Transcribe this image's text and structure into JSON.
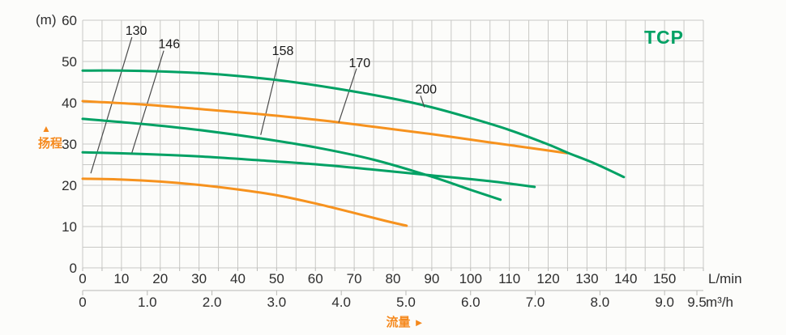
{
  "title": "TCP",
  "colors": {
    "green": "#00a164",
    "orange": "#f6921e",
    "grid": "#c8c8c5",
    "axis": "#b9b9b6",
    "tick_text": "#2e2e2e",
    "label_text": "#1a1a1a",
    "leader": "#4a4a4a",
    "accent_orange": "#f5891d",
    "background": "#fcfcfa"
  },
  "chart_data": {
    "type": "line",
    "title": "TCP",
    "grid": "on",
    "y_axis": {
      "label": "扬程",
      "direction_arrow": "▲",
      "unit": "(m)",
      "range": [
        0,
        60
      ],
      "ticks": [
        0,
        10,
        20,
        30,
        40,
        50,
        60
      ],
      "grid_step": 5
    },
    "x_axis": {
      "label": "流量",
      "direction_arrow": "►",
      "unit_primary": "L/min",
      "range_primary": [
        0,
        160
      ],
      "ticks_primary": [
        0,
        10,
        20,
        30,
        40,
        50,
        60,
        70,
        80,
        90,
        100,
        110,
        120,
        130,
        140,
        150
      ],
      "grid_step_primary": 5,
      "unit_secondary": "m³/h",
      "lmin_per_secondary_unit": 16.667,
      "ticks_secondary": [
        {
          "v": 0,
          "label": "0"
        },
        {
          "v": 1,
          "label": "1.0"
        },
        {
          "v": 2,
          "label": "2.0"
        },
        {
          "v": 3,
          "label": "3.0"
        },
        {
          "v": 4,
          "label": "4.0"
        },
        {
          "v": 5,
          "label": "5.0"
        },
        {
          "v": 6,
          "label": "6.0"
        },
        {
          "v": 7,
          "label": "7.0"
        },
        {
          "v": 8,
          "label": "8.0"
        },
        {
          "v": 9,
          "label": "9.0"
        },
        {
          "v": 9.5,
          "label": "9.5"
        }
      ]
    },
    "series": [
      {
        "name": "130",
        "color": "orange",
        "points": [
          [
            0,
            21.6
          ],
          [
            10,
            21.4
          ],
          [
            20,
            20.9
          ],
          [
            30,
            20.1
          ],
          [
            40,
            19.0
          ],
          [
            50,
            17.6
          ],
          [
            60,
            15.6
          ],
          [
            70,
            13.3
          ],
          [
            78,
            11.4
          ],
          [
            83.5,
            10.2
          ]
        ],
        "label": {
          "x": 13.8,
          "y": 57.6
        },
        "leader": [
          [
            12.7,
            55.9
          ],
          [
            2.1,
            22.9
          ]
        ]
      },
      {
        "name": "146",
        "color": "green",
        "points": [
          [
            0,
            28.0
          ],
          [
            15,
            27.6
          ],
          [
            30,
            27.0
          ],
          [
            45,
            26.1
          ],
          [
            60,
            25.1
          ],
          [
            75,
            23.8
          ],
          [
            90,
            22.4
          ],
          [
            105,
            21.0
          ],
          [
            116.5,
            19.6
          ]
        ],
        "label": {
          "x": 22.3,
          "y": 54.4
        },
        "leader": [
          [
            20.9,
            52.6
          ],
          [
            12.7,
            27.9
          ]
        ]
      },
      {
        "name": "158",
        "color": "green",
        "points": [
          [
            0,
            36.1
          ],
          [
            15,
            34.9
          ],
          [
            30,
            33.4
          ],
          [
            45,
            31.5
          ],
          [
            60,
            29.2
          ],
          [
            75,
            26.2
          ],
          [
            90,
            22.1
          ],
          [
            100,
            18.9
          ],
          [
            107.7,
            16.5
          ]
        ],
        "label": {
          "x": 51.6,
          "y": 52.7
        },
        "leader": [
          [
            50.7,
            50.9
          ],
          [
            45.9,
            32.2
          ]
        ]
      },
      {
        "name": "170",
        "color": "orange",
        "points": [
          [
            0,
            40.4
          ],
          [
            15,
            39.6
          ],
          [
            30,
            38.5
          ],
          [
            45,
            37.3
          ],
          [
            60,
            35.9
          ],
          [
            75,
            34.2
          ],
          [
            90,
            32.4
          ],
          [
            105,
            30.4
          ],
          [
            115,
            29.1
          ],
          [
            124.8,
            27.8
          ]
        ],
        "label": {
          "x": 71.4,
          "y": 49.8
        },
        "leader": [
          [
            70.6,
            48.3
          ],
          [
            66.0,
            35.2
          ]
        ]
      },
      {
        "name": "200",
        "color": "green",
        "points": [
          [
            0,
            47.8
          ],
          [
            10,
            47.8
          ],
          [
            20,
            47.6
          ],
          [
            30,
            47.2
          ],
          [
            40,
            46.5
          ],
          [
            52,
            45.3
          ],
          [
            65,
            43.5
          ],
          [
            80,
            41.0
          ],
          [
            90,
            38.9
          ],
          [
            100,
            36.3
          ],
          [
            110,
            33.4
          ],
          [
            120,
            29.9
          ],
          [
            125,
            27.9
          ],
          [
            132,
            25.3
          ],
          [
            139.5,
            22.0
          ]
        ],
        "label": {
          "x": 88.5,
          "y": 43.4
        },
        "leader": [
          [
            87.1,
            41.7
          ],
          [
            88.1,
            38.9
          ]
        ]
      }
    ]
  }
}
